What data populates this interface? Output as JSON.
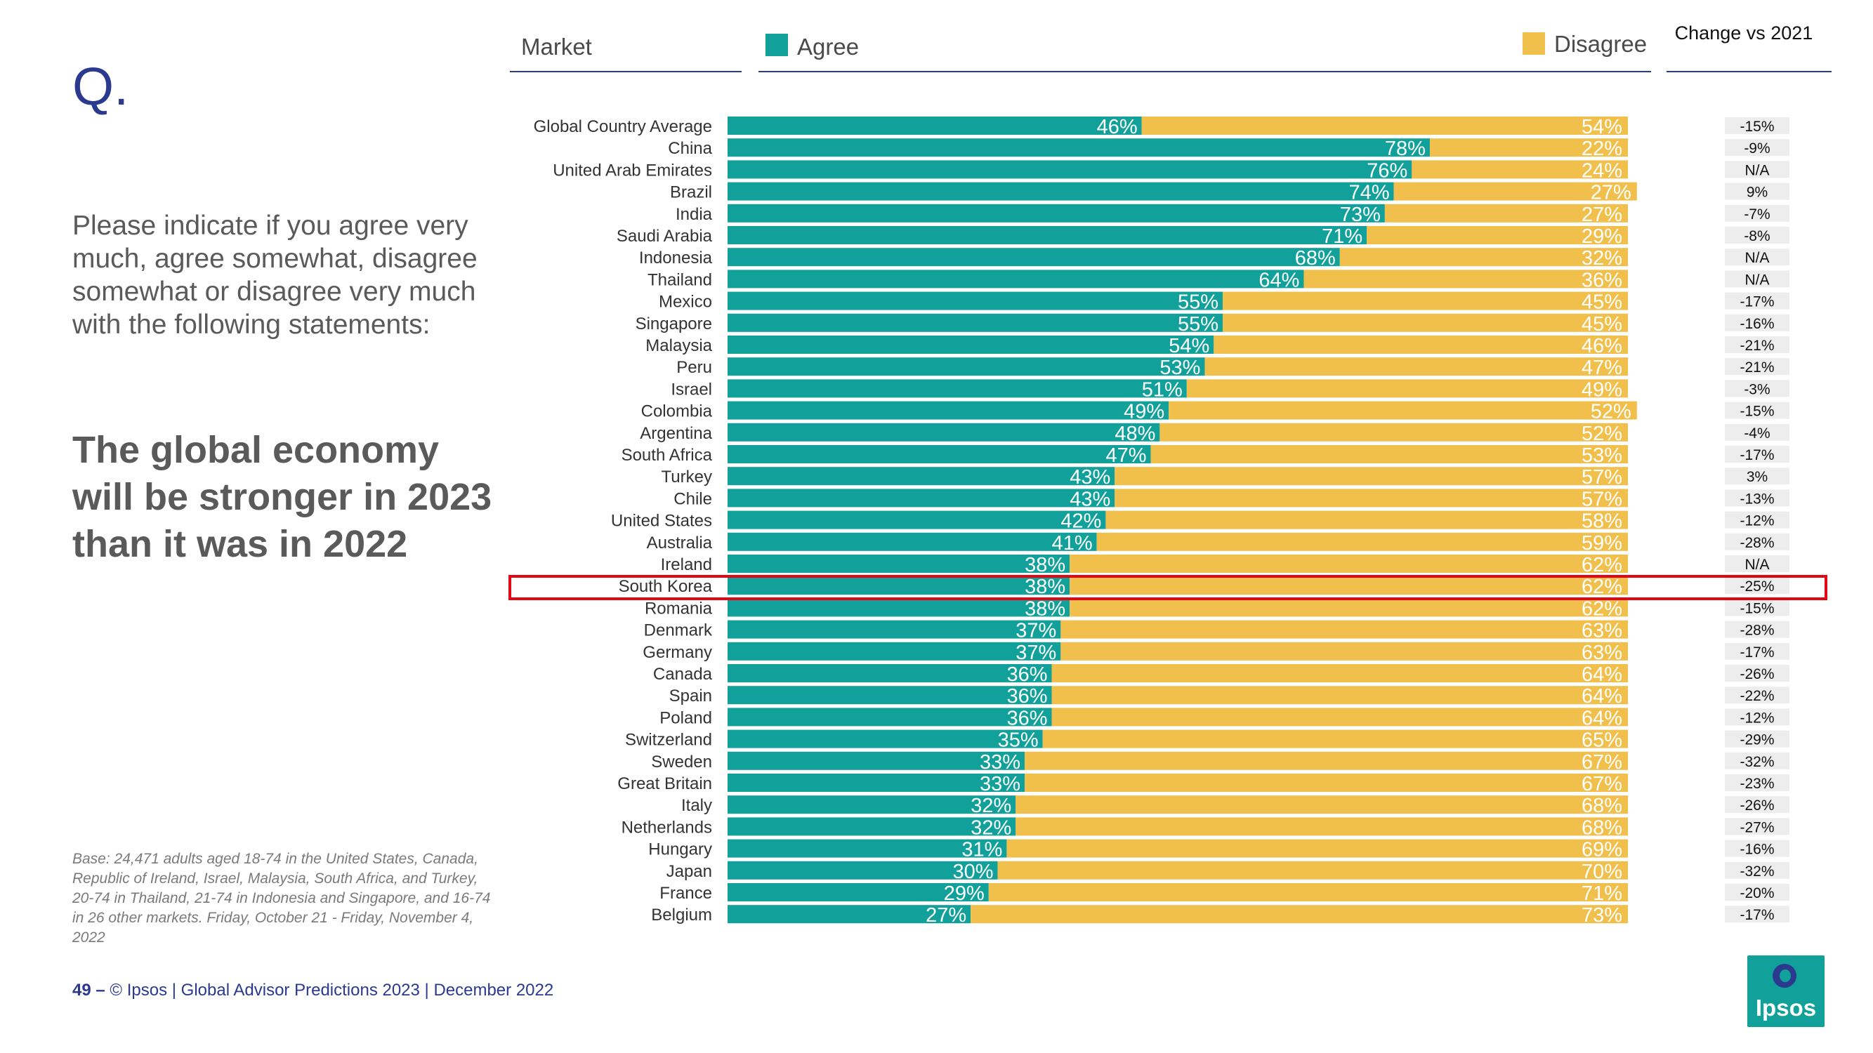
{
  "slide": {
    "q_mark": "Q.",
    "question": "Please indicate if you agree very much, agree somewhat, disagree somewhat or disagree very much with the following statements:",
    "statement": "The global economy will be stronger in 2023 than it was in 2022",
    "base_note": "Base: 24,471 adults aged 18-74 in the United States, Canada, Republic of Ireland, Israel, Malaysia, South Africa, and Turkey, 20-74 in Thailand, 21-74 in Indonesia and Singapore, and 16-74 in 26 other markets. Friday, October 21 -  Friday, November 4, 2022",
    "footer_page": "49 –",
    "footer_text": "© Ipsos | Global Advisor Predictions 2023 | December 2022",
    "logo_text": "Ipsos"
  },
  "headers": {
    "market": "Market",
    "agree": "Agree",
    "disagree": "Disagree",
    "change": "Change vs 2021"
  },
  "colors": {
    "agree": "#11a09a",
    "disagree": "#f1bf4b",
    "accent": "#2b3a8e",
    "highlight": "#e30613"
  },
  "chart_data": {
    "type": "bar",
    "orientation": "horizontal",
    "stacked": true,
    "title": "The global economy will be stronger in 2023 than it was in 2022",
    "categories": [
      "Global Country Average",
      "China",
      "United Arab Emirates",
      "Brazil",
      "India",
      "Saudi Arabia",
      "Indonesia",
      "Thailand",
      "Mexico",
      "Singapore",
      "Malaysia",
      "Peru",
      "Israel",
      "Colombia",
      "Argentina",
      "South Africa",
      "Turkey",
      "Chile",
      "United States",
      "Australia",
      "Ireland",
      "South Korea",
      "Romania",
      "Denmark",
      "Germany",
      "Canada",
      "Spain",
      "Poland",
      "Switzerland",
      "Sweden",
      "Great Britain",
      "Italy",
      "Netherlands",
      "Hungary",
      "Japan",
      "France",
      "Belgium"
    ],
    "series": [
      {
        "name": "Agree",
        "values": [
          46,
          78,
          76,
          74,
          73,
          71,
          68,
          64,
          55,
          55,
          54,
          53,
          51,
          49,
          48,
          47,
          43,
          43,
          42,
          41,
          38,
          38,
          38,
          37,
          37,
          36,
          36,
          36,
          35,
          33,
          33,
          32,
          32,
          31,
          30,
          29,
          27
        ]
      },
      {
        "name": "Disagree",
        "values": [
          54,
          22,
          24,
          27,
          27,
          29,
          32,
          36,
          45,
          45,
          46,
          47,
          49,
          52,
          52,
          53,
          57,
          57,
          58,
          59,
          62,
          62,
          62,
          63,
          63,
          64,
          64,
          64,
          65,
          67,
          67,
          68,
          68,
          69,
          70,
          71,
          73
        ]
      }
    ],
    "change_vs_2021": [
      "-15%",
      "-9%",
      "N/A",
      "9%",
      "-7%",
      "-8%",
      "N/A",
      "N/A",
      "-17%",
      "-16%",
      "-21%",
      "-21%",
      "-3%",
      "-15%",
      "-4%",
      "-17%",
      "3%",
      "-13%",
      "-12%",
      "-28%",
      "N/A",
      "-25%",
      "-15%",
      "-28%",
      "-17%",
      "-26%",
      "-22%",
      "-12%",
      "-29%",
      "-32%",
      "-23%",
      "-26%",
      "-27%",
      "-16%",
      "-32%",
      "-20%",
      "-17%"
    ],
    "highlighted_category": "South Korea",
    "xlim": [
      0,
      100
    ],
    "value_suffix": "%"
  }
}
